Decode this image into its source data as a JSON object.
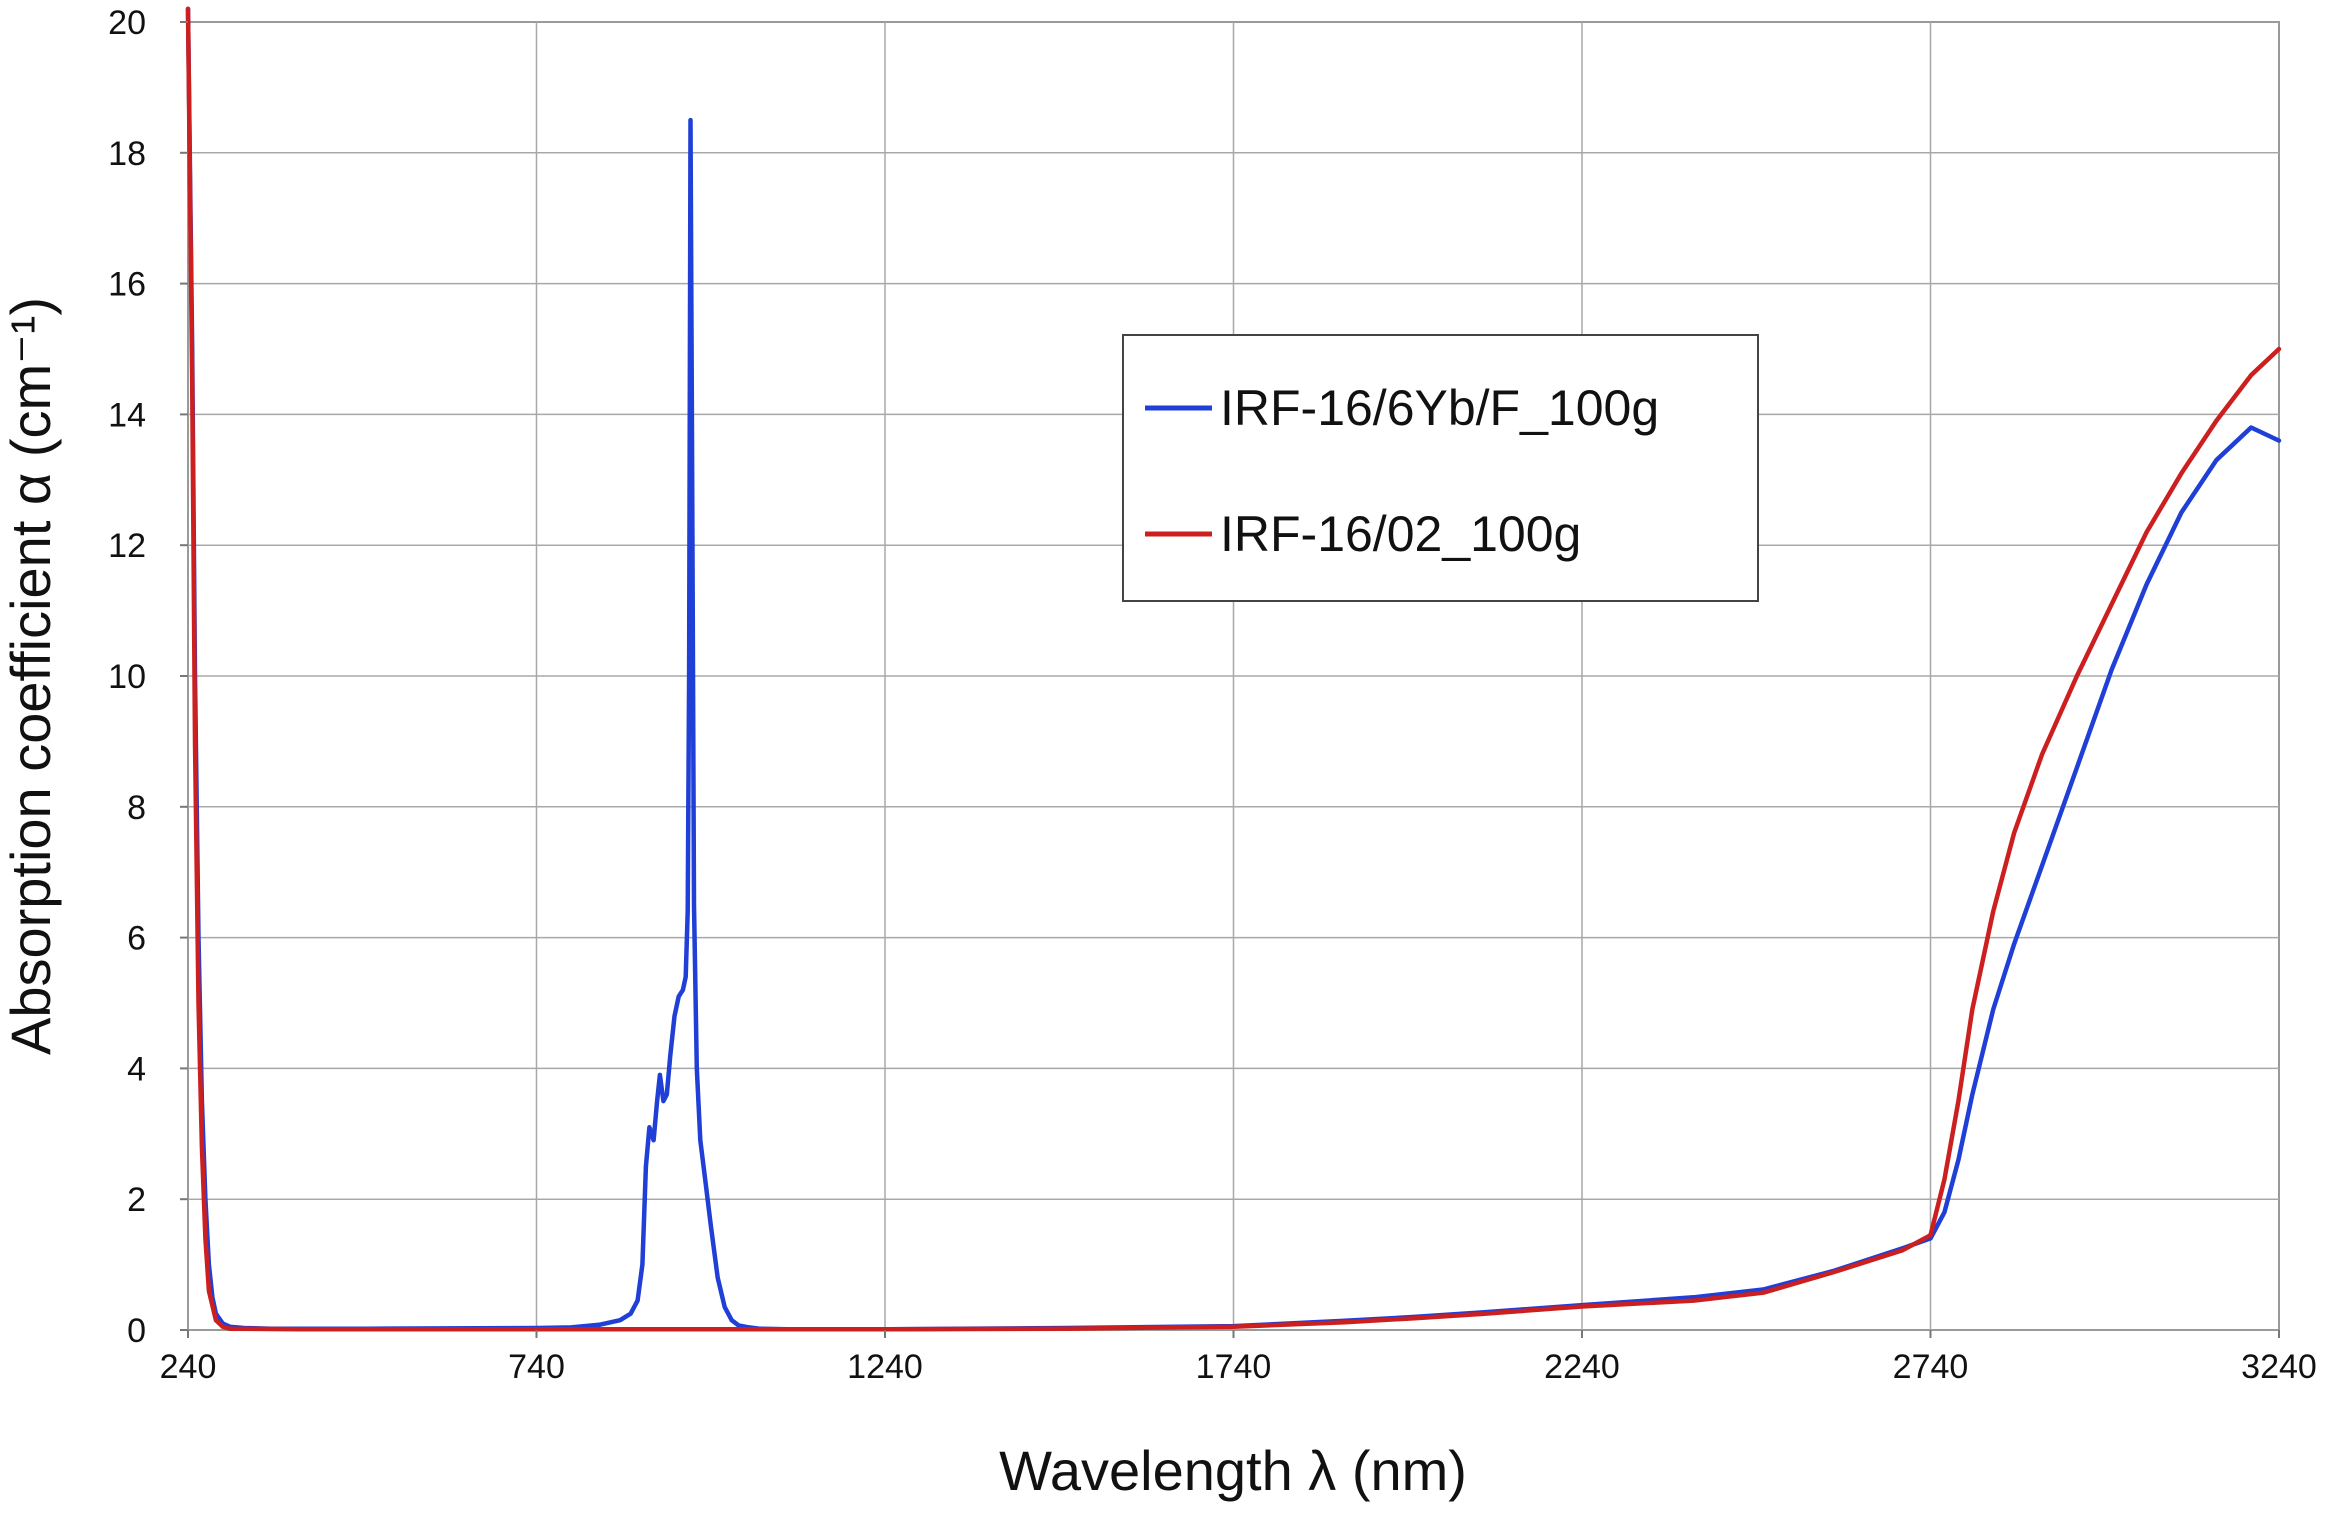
{
  "chart_data": {
    "type": "line",
    "title": "",
    "xlabel": "Wavelength  λ (nm)",
    "ylabel": "Absorption coefficient  α (cm⁻¹)",
    "xlim": [
      240,
      3240
    ],
    "ylim": [
      0,
      20
    ],
    "x_ticks": [
      "240",
      "740",
      "1240",
      "1740",
      "2240",
      "2740",
      "3240"
    ],
    "y_ticks": [
      "0",
      "2",
      "4",
      "6",
      "8",
      "10",
      "12",
      "14",
      "16",
      "18",
      "20"
    ],
    "grid": true,
    "legend_position": "center-right",
    "series": [
      {
        "name": "IRF-16/6Yb/F_100g",
        "color": "#1f3fd6",
        "x": [
          240,
          246,
          250,
          255,
          260,
          265,
          270,
          275,
          280,
          290,
          300,
          320,
          360,
          500,
          740,
          790,
          830,
          860,
          875,
          885,
          892,
          897,
          902,
          908,
          913,
          917,
          922,
          927,
          932,
          938,
          944,
          950,
          954,
          957,
          959,
          961,
          963,
          966,
          970,
          975,
          982,
          990,
          1000,
          1010,
          1020,
          1030,
          1045,
          1060,
          1100,
          1200,
          1240,
          1500,
          1740,
          1900,
          2000,
          2100,
          2240,
          2400,
          2500,
          2600,
          2700,
          2740,
          2760,
          2780,
          2800,
          2830,
          2860,
          2900,
          2950,
          3000,
          3050,
          3100,
          3150,
          3200,
          3240
        ],
        "y": [
          20.2,
          15.0,
          10.0,
          6.0,
          3.5,
          2.0,
          1.0,
          0.5,
          0.25,
          0.1,
          0.05,
          0.03,
          0.02,
          0.02,
          0.03,
          0.04,
          0.08,
          0.15,
          0.25,
          0.45,
          1.0,
          2.5,
          3.1,
          2.9,
          3.5,
          3.9,
          3.5,
          3.6,
          4.2,
          4.8,
          5.1,
          5.2,
          5.4,
          6.4,
          10.0,
          18.5,
          14.0,
          6.5,
          4.0,
          2.9,
          2.3,
          1.6,
          0.8,
          0.35,
          0.15,
          0.07,
          0.04,
          0.02,
          0.01,
          0.01,
          0.01,
          0.03,
          0.06,
          0.14,
          0.2,
          0.27,
          0.38,
          0.5,
          0.62,
          0.9,
          1.25,
          1.4,
          1.8,
          2.6,
          3.6,
          4.9,
          5.9,
          7.1,
          8.6,
          10.1,
          11.4,
          12.5,
          13.3,
          13.8,
          13.6
        ]
      },
      {
        "name": "IRF-16/02_100g",
        "color": "#cc1f1f",
        "x": [
          240,
          246,
          250,
          255,
          260,
          265,
          270,
          280,
          290,
          300,
          400,
          740,
          1000,
          1240,
          1500,
          1740,
          1900,
          2000,
          2100,
          2240,
          2400,
          2500,
          2600,
          2700,
          2740,
          2760,
          2780,
          2800,
          2830,
          2860,
          2900,
          2950,
          3000,
          3050,
          3100,
          3150,
          3200,
          3240
        ],
        "y": [
          20.2,
          14.5,
          9.0,
          5.0,
          2.8,
          1.4,
          0.6,
          0.15,
          0.05,
          0.02,
          0.01,
          0.01,
          0.01,
          0.01,
          0.02,
          0.05,
          0.12,
          0.18,
          0.25,
          0.36,
          0.45,
          0.57,
          0.88,
          1.22,
          1.45,
          2.3,
          3.5,
          4.9,
          6.4,
          7.6,
          8.8,
          10.0,
          11.1,
          12.2,
          13.1,
          13.9,
          14.6,
          15.0
        ]
      }
    ]
  }
}
